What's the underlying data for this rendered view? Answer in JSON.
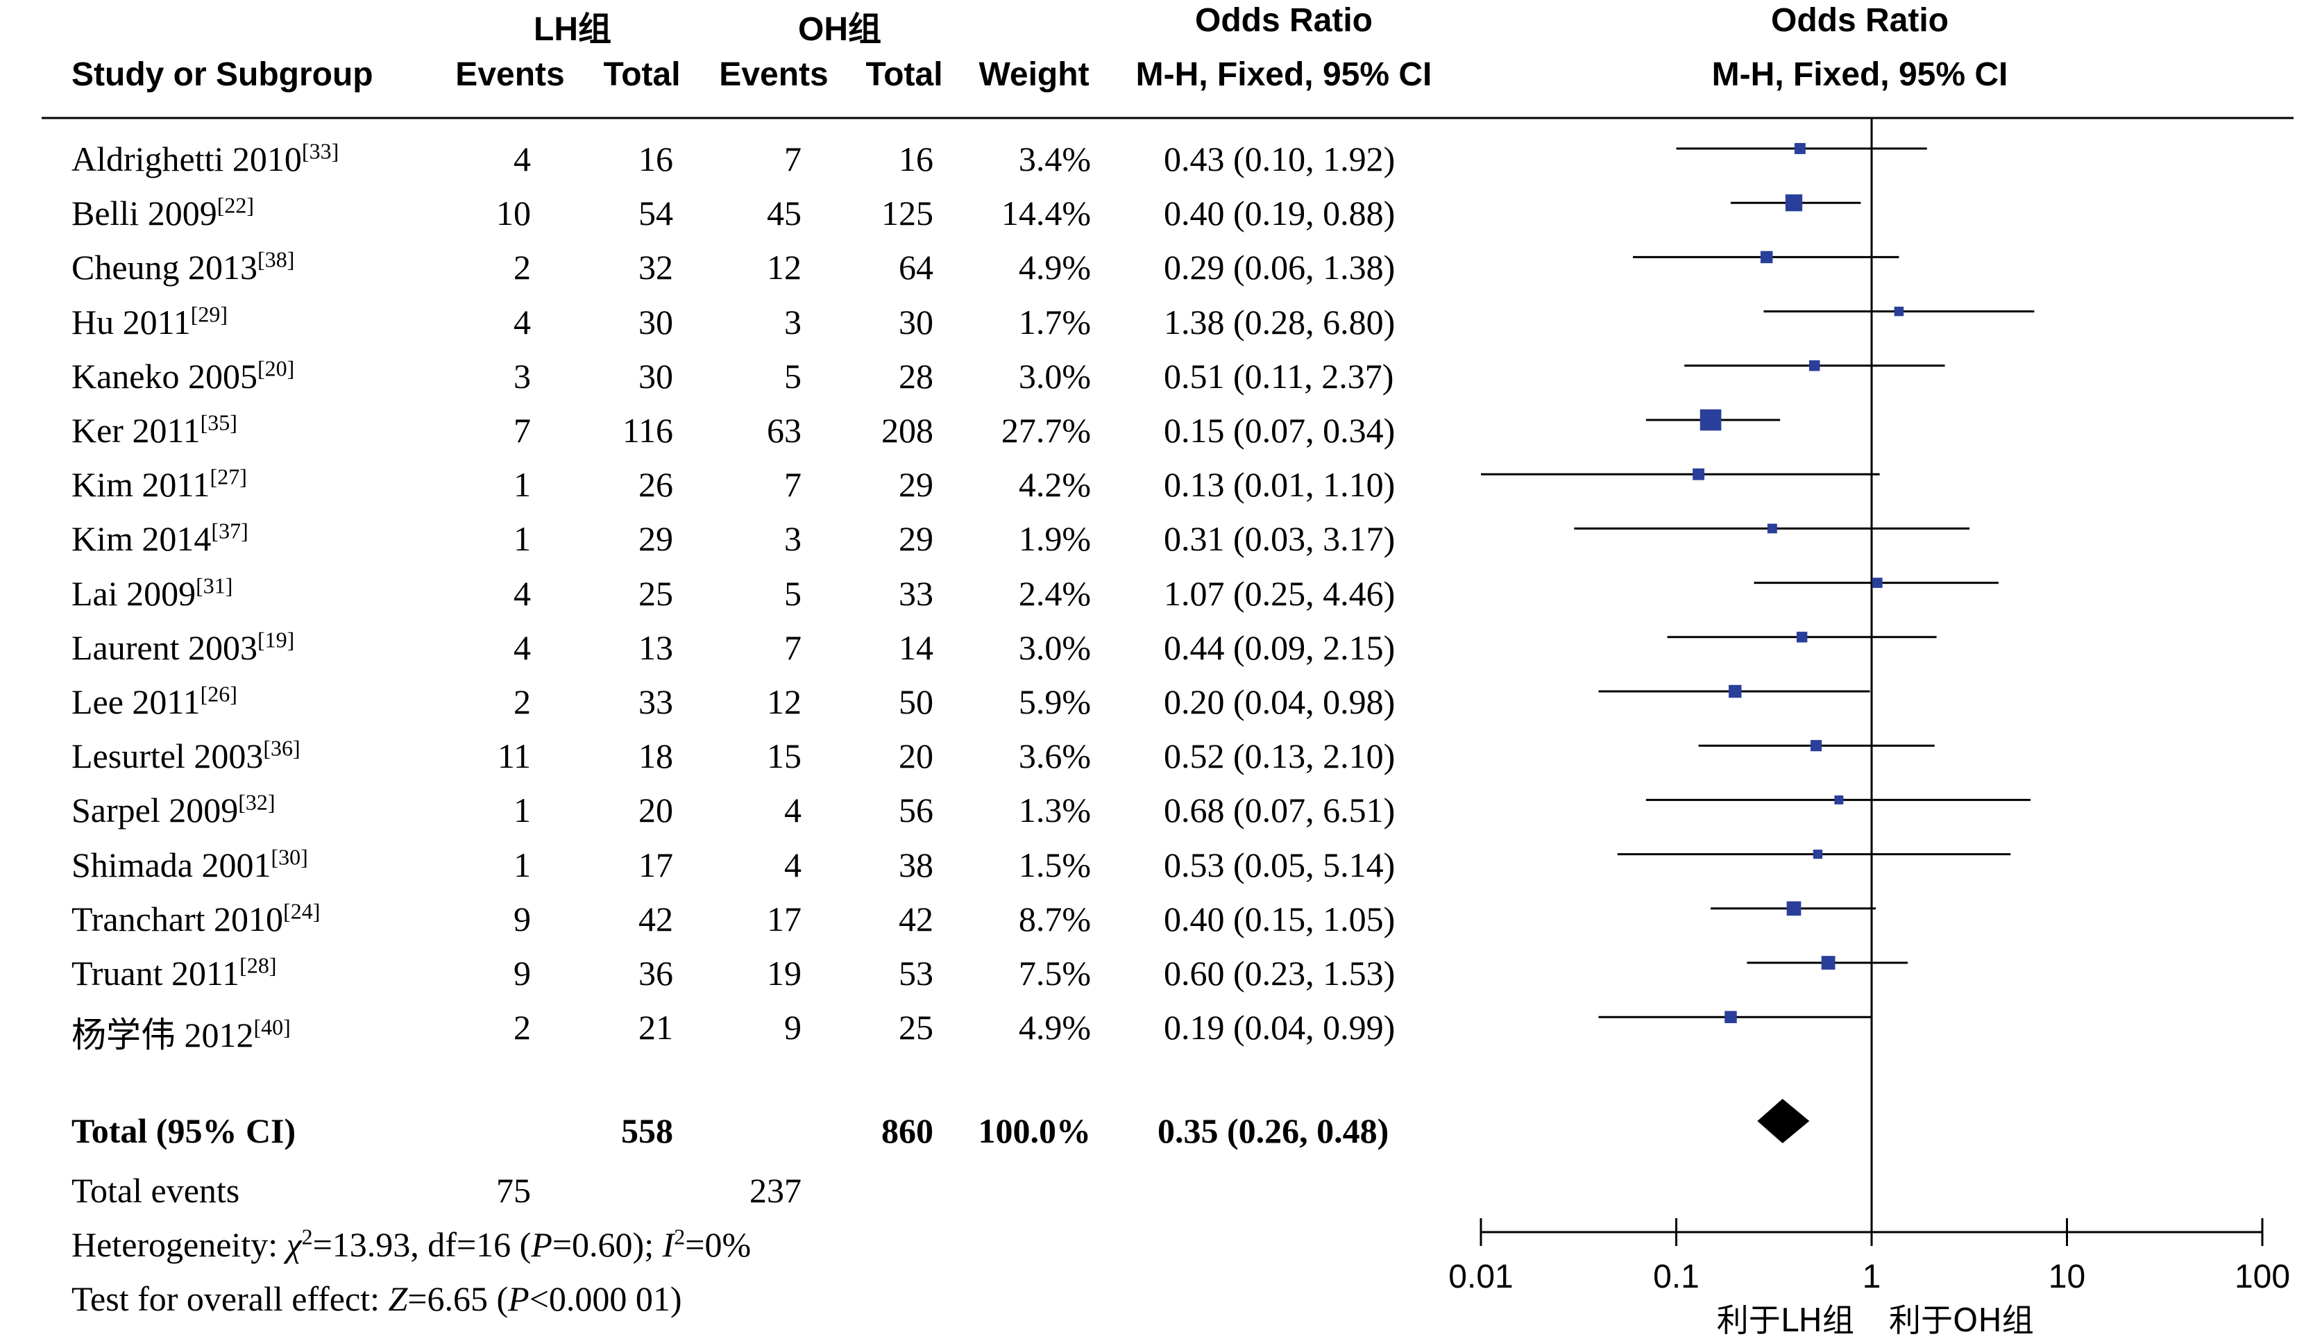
{
  "columns": {
    "group1": "LH组",
    "group2": "OH组",
    "or_left": "Odds Ratio",
    "or_left_sub": "M-H, Fixed, 95% CI",
    "or_right": "Odds Ratio",
    "or_right_sub": "M-H, Fixed, 95% CI",
    "study": "Study or Subgroup",
    "events1": "Events",
    "total1": "Total",
    "events2": "Events",
    "total2": "Total",
    "weight": "Weight"
  },
  "studies": [
    {
      "name": "Aldrighetti 2010",
      "ref": "[33]",
      "e1": "4",
      "t1": "16",
      "e2": "7",
      "t2": "16",
      "weight": "3.4%",
      "ci": "0.43 (0.10, 1.92)"
    },
    {
      "name": "Belli 2009",
      "ref": "[22]",
      "e1": "10",
      "t1": "54",
      "e2": "45",
      "t2": "125",
      "weight": "14.4%",
      "ci": "0.40 (0.19, 0.88)"
    },
    {
      "name": "Cheung 2013",
      "ref": "[38]",
      "e1": "2",
      "t1": "32",
      "e2": "12",
      "t2": "64",
      "weight": "4.9%",
      "ci": "0.29 (0.06, 1.38)"
    },
    {
      "name": "Hu 2011",
      "ref": "[29]",
      "e1": "4",
      "t1": "30",
      "e2": "3",
      "t2": "30",
      "weight": "1.7%",
      "ci": "1.38 (0.28, 6.80)"
    },
    {
      "name": "Kaneko 2005",
      "ref": "[20]",
      "e1": "3",
      "t1": "30",
      "e2": "5",
      "t2": "28",
      "weight": "3.0%",
      "ci": "0.51 (0.11, 2.37)"
    },
    {
      "name": "Ker 2011",
      "ref": "[35]",
      "e1": "7",
      "t1": "116",
      "e2": "63",
      "t2": "208",
      "weight": "27.7%",
      "ci": "0.15 (0.07, 0.34)"
    },
    {
      "name": "Kim 2011",
      "ref": "[27]",
      "e1": "1",
      "t1": "26",
      "e2": "7",
      "t2": "29",
      "weight": "4.2%",
      "ci": "0.13 (0.01, 1.10)"
    },
    {
      "name": "Kim 2014",
      "ref": "[37]",
      "e1": "1",
      "t1": "29",
      "e2": "3",
      "t2": "29",
      "weight": "1.9%",
      "ci": "0.31 (0.03, 3.17)"
    },
    {
      "name": "Lai 2009",
      "ref": "[31]",
      "e1": "4",
      "t1": "25",
      "e2": "5",
      "t2": "33",
      "weight": "2.4%",
      "ci": "1.07 (0.25, 4.46)"
    },
    {
      "name": "Laurent 2003",
      "ref": "[19]",
      "e1": "4",
      "t1": "13",
      "e2": "7",
      "t2": "14",
      "weight": "3.0%",
      "ci": "0.44 (0.09, 2.15)"
    },
    {
      "name": "Lee 2011",
      "ref": "[26]",
      "e1": "2",
      "t1": "33",
      "e2": "12",
      "t2": "50",
      "weight": "5.9%",
      "ci": "0.20 (0.04, 0.98)"
    },
    {
      "name": "Lesurtel 2003",
      "ref": "[36]",
      "e1": "11",
      "t1": "18",
      "e2": "15",
      "t2": "20",
      "weight": "3.6%",
      "ci": "0.52 (0.13, 2.10)"
    },
    {
      "name": "Sarpel 2009",
      "ref": "[32]",
      "e1": "1",
      "t1": "20",
      "e2": "4",
      "t2": "56",
      "weight": "1.3%",
      "ci": "0.68 (0.07, 6.51)"
    },
    {
      "name": "Shimada 2001",
      "ref": "[30]",
      "e1": "1",
      "t1": "17",
      "e2": "4",
      "t2": "38",
      "weight": "1.5%",
      "ci": "0.53 (0.05, 5.14)"
    },
    {
      "name": "Tranchart 2010",
      "ref": "[24]",
      "e1": "9",
      "t1": "42",
      "e2": "17",
      "t2": "42",
      "weight": "8.7%",
      "ci": "0.40 (0.15, 1.05)"
    },
    {
      "name": "Truant 2011",
      "ref": "[28]",
      "e1": "9",
      "t1": "36",
      "e2": "19",
      "t2": "53",
      "weight": "7.5%",
      "ci": "0.60 (0.23, 1.53)"
    },
    {
      "name": "杨学伟 2012",
      "ref": "[40]",
      "e1": "2",
      "t1": "21",
      "e2": "9",
      "t2": "25",
      "weight": "4.9%",
      "ci": "0.19 (0.04, 0.99)"
    }
  ],
  "total": {
    "label": "Total (95% CI)",
    "t1": "558",
    "t2": "860",
    "weight": "100.0%",
    "ci": "0.35 (0.26, 0.48)"
  },
  "total_events": {
    "label": "Total events",
    "e1": "75",
    "e2": "237"
  },
  "heterogeneity": {
    "prefix": "Heterogeneity: ",
    "chi": "χ",
    "chi_sq": "2",
    "chi_val": "=13.93, df=16 (",
    "p": "P",
    "p_val": "=0.60); ",
    "i": "I",
    "i_sq": "2",
    "i_val": "=0%"
  },
  "overall": {
    "prefix": "Test for overall effect: ",
    "z": "Z",
    "z_val": "=6.65 (",
    "p": "P",
    "p_val": "<0.000 01)"
  },
  "colors": {
    "marker": "#2a3f9a",
    "diamond": "#000000",
    "line": "#000000"
  },
  "chart_data": {
    "type": "forest",
    "scale": "log",
    "x_ticks": [
      0.01,
      0.1,
      1,
      10,
      100
    ],
    "x_tick_labels": [
      "0.01",
      "0.1",
      "1",
      "10",
      "100"
    ],
    "xlim": [
      0.01,
      100
    ],
    "favours_left": "利于LH组",
    "favours_right": "利于OH组",
    "points": [
      {
        "or": 0.43,
        "lo": 0.1,
        "hi": 1.92,
        "weight": 3.4
      },
      {
        "or": 0.4,
        "lo": 0.19,
        "hi": 0.88,
        "weight": 14.4
      },
      {
        "or": 0.29,
        "lo": 0.06,
        "hi": 1.38,
        "weight": 4.9
      },
      {
        "or": 1.38,
        "lo": 0.28,
        "hi": 6.8,
        "weight": 1.7
      },
      {
        "or": 0.51,
        "lo": 0.11,
        "hi": 2.37,
        "weight": 3.0
      },
      {
        "or": 0.15,
        "lo": 0.07,
        "hi": 0.34,
        "weight": 27.7
      },
      {
        "or": 0.13,
        "lo": 0.01,
        "hi": 1.1,
        "weight": 4.2
      },
      {
        "or": 0.31,
        "lo": 0.03,
        "hi": 3.17,
        "weight": 1.9
      },
      {
        "or": 1.07,
        "lo": 0.25,
        "hi": 4.46,
        "weight": 2.4
      },
      {
        "or": 0.44,
        "lo": 0.09,
        "hi": 2.15,
        "weight": 3.0
      },
      {
        "or": 0.2,
        "lo": 0.04,
        "hi": 0.98,
        "weight": 5.9
      },
      {
        "or": 0.52,
        "lo": 0.13,
        "hi": 2.1,
        "weight": 3.6
      },
      {
        "or": 0.68,
        "lo": 0.07,
        "hi": 6.51,
        "weight": 1.3
      },
      {
        "or": 0.53,
        "lo": 0.05,
        "hi": 5.14,
        "weight": 1.5
      },
      {
        "or": 0.4,
        "lo": 0.15,
        "hi": 1.05,
        "weight": 8.7
      },
      {
        "or": 0.6,
        "lo": 0.23,
        "hi": 1.53,
        "weight": 7.5
      },
      {
        "or": 0.19,
        "lo": 0.04,
        "hi": 0.99,
        "weight": 4.9
      }
    ],
    "total": {
      "or": 0.35,
      "lo": 0.26,
      "hi": 0.48
    }
  }
}
